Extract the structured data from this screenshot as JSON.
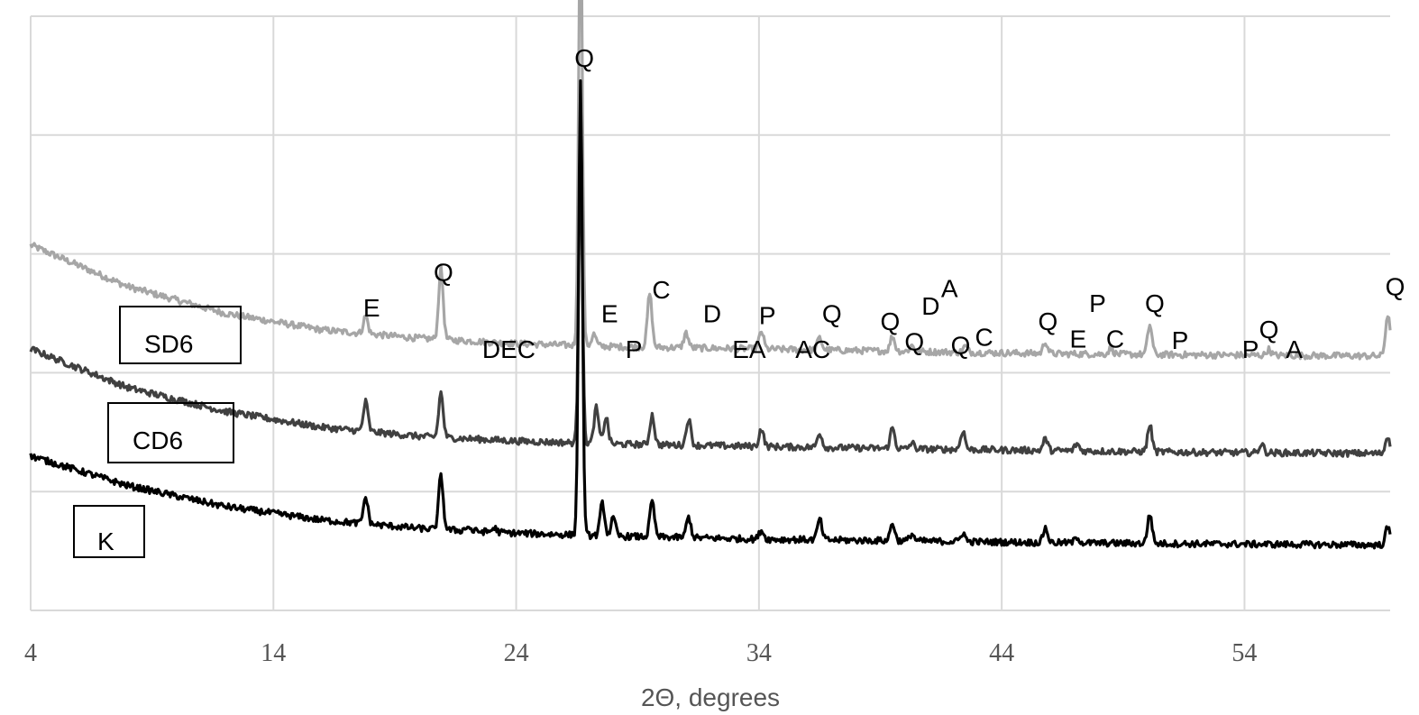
{
  "chart_data": {
    "type": "line",
    "xlabel": "2Θ, degrees",
    "xlim": [
      4,
      60
    ],
    "x_ticks": [
      "4",
      "14",
      "24",
      "34",
      "44",
      "54"
    ],
    "y_tick_labels": false,
    "ylim": [
      0,
      100
    ],
    "grid": true,
    "series": [
      {
        "name": "SD6",
        "color": "#a6a6a6",
        "baseline": [
          [
            4,
            61.5
          ],
          [
            8,
            54.5
          ],
          [
            12,
            50
          ],
          [
            16,
            47.2
          ],
          [
            20,
            45.8
          ],
          [
            24,
            44.9
          ],
          [
            28,
            44.4
          ],
          [
            34,
            44
          ],
          [
            40,
            43.6
          ],
          [
            46,
            43.2
          ],
          [
            52,
            43
          ],
          [
            60,
            42.8
          ]
        ],
        "peaks": [
          [
            17.8,
            3
          ],
          [
            20.9,
            12
          ],
          [
            26.65,
            73
          ],
          [
            27.2,
            2
          ],
          [
            29.5,
            9
          ],
          [
            31.0,
            2.5
          ],
          [
            34.1,
            3
          ],
          [
            36.5,
            2
          ],
          [
            39.5,
            2.5
          ],
          [
            40.3,
            1
          ],
          [
            42.5,
            1
          ],
          [
            45.8,
            2
          ],
          [
            48.5,
            1
          ],
          [
            50.1,
            5
          ],
          [
            55.0,
            1
          ],
          [
            59.9,
            7
          ]
        ]
      },
      {
        "name": "CD6",
        "color": "#404040",
        "baseline": [
          [
            4,
            44
          ],
          [
            8,
            37.5
          ],
          [
            12,
            33.5
          ],
          [
            16,
            30.8
          ],
          [
            20,
            29.3
          ],
          [
            24,
            28.5
          ],
          [
            28,
            28
          ],
          [
            34,
            27.6
          ],
          [
            40,
            27.2
          ],
          [
            46,
            26.9
          ],
          [
            52,
            26.6
          ],
          [
            60,
            26.4
          ]
        ],
        "peaks": [
          [
            17.8,
            5
          ],
          [
            20.9,
            7.5
          ],
          [
            26.65,
            48
          ],
          [
            27.3,
            6
          ],
          [
            27.7,
            4.5
          ],
          [
            29.6,
            5
          ],
          [
            31.1,
            4.5
          ],
          [
            34.1,
            3
          ],
          [
            36.5,
            2.5
          ],
          [
            39.5,
            3.5
          ],
          [
            40.3,
            1
          ],
          [
            42.4,
            3.2
          ],
          [
            45.8,
            2
          ],
          [
            47.1,
            1.2
          ],
          [
            50.1,
            4.5
          ],
          [
            54.7,
            1.5
          ],
          [
            59.9,
            3
          ]
        ]
      },
      {
        "name": "K",
        "color": "#000000",
        "baseline": [
          [
            4,
            26
          ],
          [
            8,
            21
          ],
          [
            12,
            17.5
          ],
          [
            16,
            15.2
          ],
          [
            20,
            13.8
          ],
          [
            24,
            13
          ],
          [
            28,
            12.5
          ],
          [
            34,
            12
          ],
          [
            40,
            11.7
          ],
          [
            46,
            11.4
          ],
          [
            52,
            11.2
          ],
          [
            60,
            11
          ]
        ],
        "peaks": [
          [
            17.8,
            4.5
          ],
          [
            20.9,
            9
          ],
          [
            22.0,
            0.7
          ],
          [
            23.1,
            0.7
          ],
          [
            26.65,
            76
          ],
          [
            27.55,
            5.5
          ],
          [
            28.0,
            3
          ],
          [
            29.6,
            6
          ],
          [
            31.1,
            3.5
          ],
          [
            34.1,
            1.5
          ],
          [
            36.5,
            3.5
          ],
          [
            39.5,
            3
          ],
          [
            40.3,
            1.2
          ],
          [
            42.4,
            1.5
          ],
          [
            45.8,
            2.5
          ],
          [
            47.1,
            1
          ],
          [
            50.1,
            5
          ],
          [
            59.9,
            3
          ]
        ]
      }
    ],
    "peak_labels": [
      {
        "text": "Q",
        "x": 26.4,
        "y": 91.5
      },
      {
        "text": "Q",
        "x": 20.6,
        "y": 55.5
      },
      {
        "text": "E",
        "x": 17.7,
        "y": 49.5
      },
      {
        "text": "DEC",
        "x": 22.6,
        "y": 42.5
      },
      {
        "text": "E",
        "x": 27.5,
        "y": 48.5
      },
      {
        "text": "P",
        "x": 28.5,
        "y": 42.5
      },
      {
        "text": "C",
        "x": 29.6,
        "y": 52.5
      },
      {
        "text": "D",
        "x": 31.7,
        "y": 48.5
      },
      {
        "text": "EA",
        "x": 32.9,
        "y": 42.5
      },
      {
        "text": "P",
        "x": 34.0,
        "y": 48.2
      },
      {
        "text": "AC",
        "x": 35.5,
        "y": 42.5
      },
      {
        "text": "Q",
        "x": 36.6,
        "y": 48.5
      },
      {
        "text": "Q",
        "x": 39.0,
        "y": 47.2
      },
      {
        "text": "Q",
        "x": 40.0,
        "y": 43.8
      },
      {
        "text": "D",
        "x": 40.7,
        "y": 49.8
      },
      {
        "text": "A",
        "x": 41.5,
        "y": 52.7
      },
      {
        "text": "Q",
        "x": 41.9,
        "y": 43.2
      },
      {
        "text": "C",
        "x": 42.9,
        "y": 44.5
      },
      {
        "text": "Q",
        "x": 45.5,
        "y": 47.2
      },
      {
        "text": "E",
        "x": 46.8,
        "y": 44.2
      },
      {
        "text": "P",
        "x": 47.6,
        "y": 50.2
      },
      {
        "text": "C",
        "x": 48.3,
        "y": 44.2
      },
      {
        "text": "Q",
        "x": 49.9,
        "y": 50.2
      },
      {
        "text": "P",
        "x": 51.0,
        "y": 44.0
      },
      {
        "text": "P",
        "x": 53.9,
        "y": 42.5
      },
      {
        "text": "Q",
        "x": 54.6,
        "y": 45.8
      },
      {
        "text": "A",
        "x": 55.7,
        "y": 42.5
      },
      {
        "text": "Q",
        "x": 59.8,
        "y": 53.0
      }
    ],
    "series_labels": [
      "SD6",
      "CD6",
      "K"
    ]
  }
}
